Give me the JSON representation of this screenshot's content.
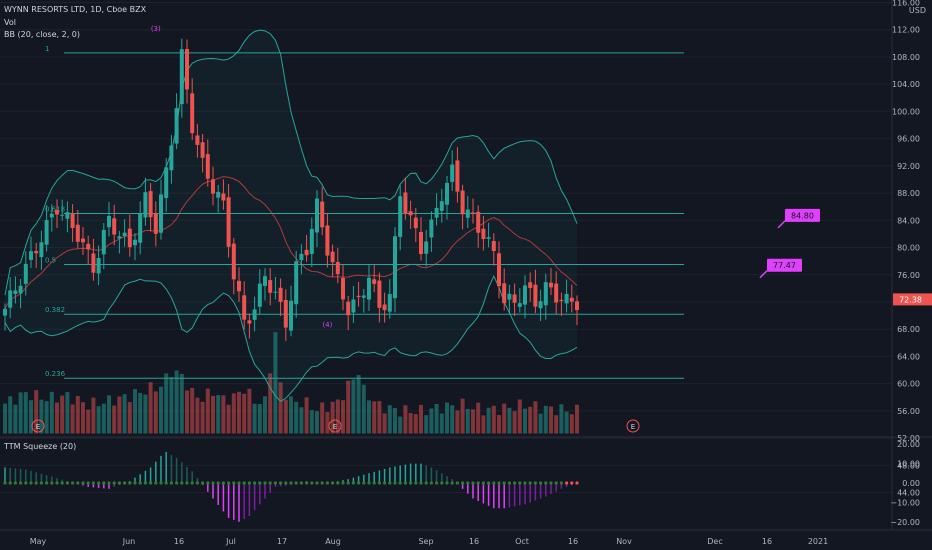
{
  "header": {
    "symbol_line": "WYNN RESORTS LTD, 1D, Cboe BZX",
    "vol_label": "Vol",
    "bb_label": "BB (20, close, 2, 0)",
    "currency": "USD",
    "squeeze_label": "TTM Squeeze (20)"
  },
  "chart_data": {
    "type": "candlestick",
    "price_axis": {
      "ticks": [
        "116.00",
        "112.00",
        "108.00",
        "104.00",
        "100.00",
        "96.00",
        "92.00",
        "88.00",
        "84.00",
        "80.00",
        "76.00",
        "72.00",
        "68.00",
        "64.00",
        "60.00",
        "56.00",
        "52.00",
        "48.00",
        "44.00"
      ],
      "range": [
        44,
        116
      ],
      "last_price": "72.38"
    },
    "osc_axis": {
      "ticks": [
        "20.00",
        "10.00",
        "0.00",
        "−10.00",
        "−20.00"
      ],
      "range": [
        -23,
        23
      ]
    },
    "x_axis": {
      "ticks": [
        "May",
        "Jun",
        "16",
        "Jul",
        "17",
        "Aug",
        "Sep",
        "16",
        "Oct",
        "16",
        "Nov",
        "Dec",
        "16",
        "2021"
      ]
    },
    "fib_levels": [
      {
        "label": "1",
        "price": 108.6
      },
      {
        "label": "0.618",
        "price": 85.0
      },
      {
        "label": "0.5",
        "price": 77.5
      },
      {
        "label": "0.382",
        "price": 70.2
      },
      {
        "label": "0.236",
        "price": 60.8
      }
    ],
    "markers": {
      "wave_3": "(3)",
      "wave_4": "(4)",
      "earnings": "E"
    },
    "targets": [
      {
        "label": "84.80",
        "price": 84.8
      },
      {
        "label": "77.47",
        "price": 77.47
      }
    ],
    "close_anchors": [
      [
        0,
        71
      ],
      [
        6,
        80
      ],
      [
        10,
        86
      ],
      [
        14,
        82
      ],
      [
        17,
        77
      ],
      [
        20,
        84
      ],
      [
        24,
        80
      ],
      [
        27,
        87
      ],
      [
        29,
        83
      ],
      [
        31,
        91
      ],
      [
        33,
        101
      ],
      [
        34,
        108
      ],
      [
        36,
        98
      ],
      [
        38,
        92
      ],
      [
        40,
        89
      ],
      [
        42,
        86
      ],
      [
        44,
        76
      ],
      [
        46,
        69
      ],
      [
        48,
        71
      ],
      [
        50,
        76
      ],
      [
        52,
        73
      ],
      [
        54,
        69
      ],
      [
        56,
        77
      ],
      [
        58,
        80
      ],
      [
        60,
        86
      ],
      [
        62,
        80
      ],
      [
        64,
        75
      ],
      [
        66,
        71
      ],
      [
        68,
        72
      ],
      [
        70,
        76
      ],
      [
        72,
        71
      ],
      [
        74,
        73
      ],
      [
        76,
        88
      ],
      [
        78,
        84
      ],
      [
        80,
        80
      ],
      [
        82,
        83
      ],
      [
        84,
        88
      ],
      [
        86,
        91
      ],
      [
        88,
        86
      ],
      [
        90,
        84
      ],
      [
        92,
        82
      ],
      [
        94,
        79
      ],
      [
        96,
        72
      ],
      [
        98,
        72
      ],
      [
        100,
        74
      ],
      [
        102,
        72
      ],
      [
        104,
        74
      ],
      [
        106,
        73
      ],
      [
        108,
        72
      ],
      [
        110,
        72
      ]
    ],
    "volume_anchors": [
      [
        0,
        2.4
      ],
      [
        4,
        3.2
      ],
      [
        8,
        2.8
      ],
      [
        12,
        3.0
      ],
      [
        16,
        2.3
      ],
      [
        20,
        2.6
      ],
      [
        24,
        3.0
      ],
      [
        28,
        3.6
      ],
      [
        30,
        3.8
      ],
      [
        32,
        5.0
      ],
      [
        34,
        4.6
      ],
      [
        36,
        3.2
      ],
      [
        38,
        2.8
      ],
      [
        40,
        3.4
      ],
      [
        42,
        2.7
      ],
      [
        44,
        2.9
      ],
      [
        46,
        3.6
      ],
      [
        48,
        2.6
      ],
      [
        50,
        2.5
      ],
      [
        52,
        8.0
      ],
      [
        53,
        3.8
      ],
      [
        55,
        2.6
      ],
      [
        58,
        2.4
      ],
      [
        60,
        1.9
      ],
      [
        62,
        2.2
      ],
      [
        64,
        2.5
      ],
      [
        66,
        3.8
      ],
      [
        68,
        5.0
      ],
      [
        69,
        3.4
      ],
      [
        72,
        2.2
      ],
      [
        76,
        1.8
      ],
      [
        80,
        1.8
      ],
      [
        84,
        2.1
      ],
      [
        88,
        2.3
      ],
      [
        92,
        1.9
      ],
      [
        96,
        2.0
      ],
      [
        100,
        2.3
      ],
      [
        104,
        2.0
      ],
      [
        110,
        1.8
      ]
    ],
    "squeeze_anchors": [
      [
        0,
        8
      ],
      [
        4,
        7
      ],
      [
        8,
        4
      ],
      [
        12,
        1
      ],
      [
        16,
        -2
      ],
      [
        20,
        -3
      ],
      [
        24,
        1
      ],
      [
        28,
        8
      ],
      [
        30,
        14
      ],
      [
        31,
        16
      ],
      [
        33,
        13
      ],
      [
        36,
        6
      ],
      [
        40,
        -8
      ],
      [
        43,
        -18
      ],
      [
        45,
        -20
      ],
      [
        47,
        -17
      ],
      [
        50,
        -8
      ],
      [
        52,
        -2
      ],
      [
        55,
        -1
      ],
      [
        58,
        1
      ],
      [
        62,
        0
      ],
      [
        66,
        2
      ],
      [
        70,
        5
      ],
      [
        74,
        8
      ],
      [
        78,
        10
      ],
      [
        80,
        10
      ],
      [
        82,
        8
      ],
      [
        86,
        2
      ],
      [
        90,
        -8
      ],
      [
        94,
        -13
      ],
      [
        96,
        -13
      ],
      [
        100,
        -11
      ],
      [
        104,
        -7
      ],
      [
        107,
        -3
      ],
      [
        110,
        0
      ]
    ]
  }
}
